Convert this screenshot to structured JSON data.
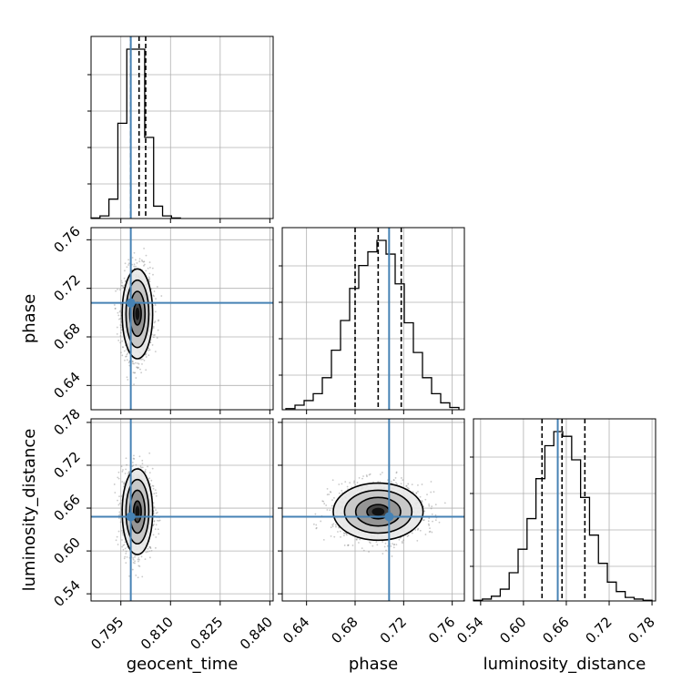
{
  "chart_data": {
    "type": "corner",
    "grid": true,
    "colors": {
      "truth": "#4682b4",
      "hist": "#000000",
      "quantile": "#000000",
      "scatter": "#888888"
    },
    "parameters": [
      {
        "name": "geocent_time",
        "label": "geocent_time",
        "range": [
          0.786,
          0.841
        ],
        "ticks": [
          0.795,
          0.81,
          0.825,
          0.84
        ],
        "tick_labels": [
          "0.795",
          "0.810",
          "0.825",
          "0.840"
        ],
        "truth": 0.798,
        "quantiles": [
          0.798,
          0.8005,
          0.8025
        ],
        "histogram": {
          "edges": [
            0.786,
            0.7887,
            0.7914,
            0.7941,
            0.7968,
            0.7995,
            0.8022,
            0.8049,
            0.8076,
            0.8103,
            0.813
          ],
          "counts": [
            0.3,
            1.5,
            11.0,
            54.0,
            96.0,
            96.0,
            46.0,
            7.0,
            1.5,
            0.3
          ]
        }
      },
      {
        "name": "phase",
        "label": "phase",
        "range": [
          0.62,
          0.77
        ],
        "ticks": [
          0.64,
          0.68,
          0.72,
          0.76
        ],
        "tick_labels": [
          "0.64",
          "0.68",
          "0.72",
          "0.76"
        ],
        "truth": 0.708,
        "quantiles": [
          0.68,
          0.699,
          0.718
        ],
        "histogram": {
          "edges": [
            0.623,
            0.6305,
            0.638,
            0.6455,
            0.653,
            0.6605,
            0.668,
            0.6755,
            0.683,
            0.6905,
            0.698,
            0.7055,
            0.713,
            0.7205,
            0.728,
            0.7355,
            0.743,
            0.7505,
            0.758,
            0.7655
          ],
          "counts": [
            0.5,
            2.0,
            4.0,
            7.0,
            14.0,
            26.0,
            39.0,
            53.0,
            63.0,
            69.0,
            74.0,
            68.0,
            55.0,
            38.0,
            25.0,
            14.0,
            7.0,
            3.0,
            1.0
          ]
        }
      },
      {
        "name": "luminosity_distance",
        "label": "luminosity_distance",
        "range": [
          0.53,
          0.785
        ],
        "ticks": [
          0.54,
          0.6,
          0.66,
          0.72,
          0.78
        ],
        "tick_labels": [
          "0.54",
          "0.60",
          "0.66",
          "0.72",
          "0.78"
        ],
        "truth": 0.648,
        "quantiles": [
          0.626,
          0.654,
          0.686
        ],
        "histogram": {
          "edges": [
            0.53,
            0.5425,
            0.555,
            0.5675,
            0.58,
            0.5925,
            0.605,
            0.6175,
            0.63,
            0.6425,
            0.655,
            0.6675,
            0.68,
            0.6925,
            0.705,
            0.7175,
            0.73,
            0.7425,
            0.755,
            0.7675,
            0.78
          ],
          "counts": [
            0.3,
            0.8,
            2.0,
            5.0,
            12.0,
            22.0,
            35.0,
            52.0,
            66.0,
            72.0,
            70.0,
            60.0,
            44.0,
            28.0,
            16.0,
            8.0,
            4.0,
            1.5,
            0.8,
            0.3
          ]
        }
      }
    ],
    "pairs": [
      {
        "x_param": 0,
        "y_param": 1,
        "center": [
          0.8,
          0.699
        ],
        "sigma": [
          0.0023,
          0.0185
        ],
        "contour_sigmas": [
          0.5,
          1.0,
          1.5,
          2.0
        ],
        "scatter_extent": 2.6
      },
      {
        "x_param": 0,
        "y_param": 2,
        "center": [
          0.8,
          0.655
        ],
        "sigma": [
          0.0023,
          0.03
        ],
        "contour_sigmas": [
          0.5,
          1.0,
          1.5,
          2.0
        ],
        "scatter_extent": 2.6
      },
      {
        "x_param": 1,
        "y_param": 2,
        "center": [
          0.699,
          0.655
        ],
        "sigma": [
          0.0185,
          0.02
        ],
        "contour_sigmas": [
          0.5,
          1.0,
          1.5,
          2.0
        ],
        "scatter_extent": 2.6
      }
    ]
  }
}
